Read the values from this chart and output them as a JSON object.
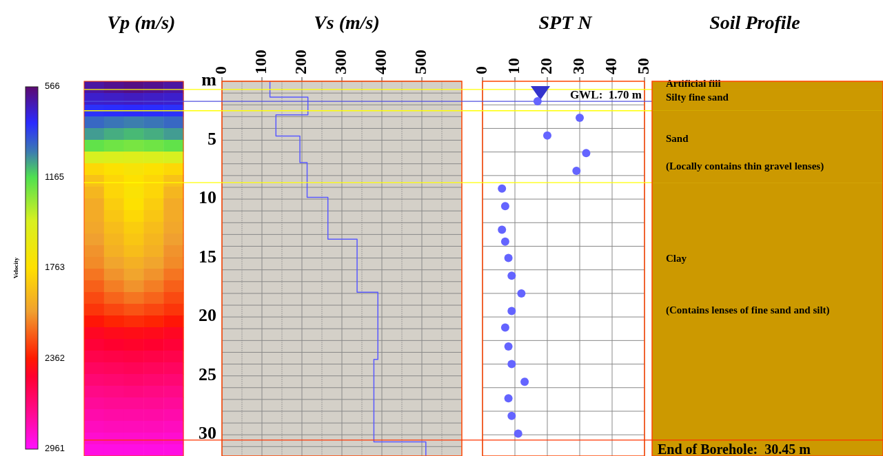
{
  "chart_data": [
    {
      "type": "heatmap",
      "title": "Vp (m/s)",
      "clabel": "Velocity",
      "clim": [
        566,
        2961
      ],
      "cticks": [
        566,
        1165,
        1763,
        2362,
        2961
      ],
      "categories": [
        null,
        null,
        null,
        null,
        null
      ],
      "y_categories": [
        null,
        null,
        null,
        null,
        null,
        null,
        null,
        null,
        null,
        null,
        null,
        null,
        null,
        null,
        null,
        null,
        null,
        null,
        null,
        null,
        null,
        null,
        null,
        null,
        null,
        null,
        null,
        null,
        null,
        null,
        null,
        null
      ],
      "cells": [
        [
          650,
          620,
          600,
          620,
          650
        ],
        [
          720,
          710,
          700,
          710,
          720
        ],
        [
          820,
          810,
          800,
          810,
          820
        ],
        [
          950,
          980,
          1000,
          980,
          950
        ],
        [
          1050,
          1080,
          1100,
          1080,
          1050
        ],
        [
          1200,
          1230,
          1250,
          1230,
          1200
        ],
        [
          1450,
          1480,
          1500,
          1480,
          1450
        ],
        [
          1800,
          1740,
          1700,
          1740,
          1800
        ],
        [
          1900,
          1810,
          1750,
          1810,
          1900
        ],
        [
          1950,
          1810,
          1720,
          1810,
          1950
        ],
        [
          2000,
          1850,
          1750,
          1850,
          2000
        ],
        [
          2000,
          1880,
          1800,
          1880,
          2000
        ],
        [
          2020,
          1920,
          1850,
          1920,
          2020
        ],
        [
          2050,
          1950,
          1880,
          1950,
          2050
        ],
        [
          2080,
          1980,
          1920,
          1980,
          2080
        ],
        [
          2100,
          2030,
          1980,
          2030,
          2100
        ],
        [
          2150,
          2080,
          2030,
          2080,
          2150
        ],
        [
          2200,
          2130,
          2080,
          2130,
          2200
        ],
        [
          2250,
          2190,
          2150,
          2190,
          2250
        ],
        [
          2300,
          2260,
          2230,
          2260,
          2300
        ],
        [
          2380,
          2340,
          2320,
          2340,
          2380
        ],
        [
          2450,
          2430,
          2420,
          2430,
          2450
        ],
        [
          2500,
          2480,
          2470,
          2480,
          2500
        ],
        [
          2550,
          2540,
          2530,
          2540,
          2550
        ],
        [
          2600,
          2590,
          2580,
          2590,
          2600
        ],
        [
          2650,
          2640,
          2630,
          2640,
          2650
        ],
        [
          2700,
          2690,
          2680,
          2690,
          2700
        ],
        [
          2740,
          2730,
          2730,
          2730,
          2740
        ],
        [
          2780,
          2770,
          2770,
          2770,
          2780
        ],
        [
          2820,
          2810,
          2810,
          2810,
          2820
        ],
        [
          2860,
          2850,
          2850,
          2850,
          2860
        ],
        [
          2900,
          2900,
          2900,
          2900,
          2900
        ]
      ]
    },
    {
      "type": "line",
      "title": "Vs (m/s)",
      "color": "#5a5aff",
      "x": [
        120,
        120,
        215,
        215,
        135,
        135,
        195,
        195,
        213,
        213,
        265,
        265,
        338,
        338,
        390,
        390,
        380,
        380,
        510,
        510
      ],
      "values": [
        0,
        1.35,
        1.35,
        2.85,
        2.85,
        4.65,
        4.65,
        6.9,
        6.9,
        9.85,
        9.85,
        13.4,
        13.4,
        17.9,
        17.9,
        23.6,
        23.6,
        30.6,
        30.6,
        31.8
      ],
      "xlim": [
        0,
        600
      ],
      "ylim": [
        31.8,
        0
      ],
      "xticks": [
        0,
        {
          "value": 50,
          "label": null
        },
        100,
        {
          "value": 150,
          "label": null
        },
        200,
        {
          "value": 250,
          "label": null
        },
        300,
        {
          "value": 350,
          "label": null
        },
        400,
        {
          "value": 450,
          "label": null
        },
        500,
        {
          "value": 550,
          "label": null
        }
      ],
      "yticks": [
        {
          "value": 0,
          "label": "m"
        },
        {
          "value": 1,
          "label": null
        },
        {
          "value": 2,
          "label": null
        },
        {
          "value": 3,
          "label": null
        },
        {
          "value": 4,
          "label": null
        },
        5,
        {
          "value": 6,
          "label": null
        },
        {
          "value": 7,
          "label": null
        },
        {
          "value": 8,
          "label": null
        },
        {
          "value": 9,
          "label": null
        },
        10,
        {
          "value": 11,
          "label": null
        },
        {
          "value": 12,
          "label": null
        },
        {
          "value": 13,
          "label": null
        },
        {
          "value": 14,
          "label": null
        },
        15,
        {
          "value": 16,
          "label": null
        },
        {
          "value": 17,
          "label": null
        },
        {
          "value": 18,
          "label": null
        },
        {
          "value": 19,
          "label": null
        },
        20,
        {
          "value": 21,
          "label": null
        },
        {
          "value": 22,
          "label": null
        },
        {
          "value": 23,
          "label": null
        },
        {
          "value": 24,
          "label": null
        },
        25,
        {
          "value": 26,
          "label": null
        },
        {
          "value": 27,
          "label": null
        },
        {
          "value": 28,
          "label": null
        },
        {
          "value": 29,
          "label": null
        },
        30,
        {
          "value": 31,
          "label": null
        }
      ],
      "grid": true
    },
    {
      "type": "scatter",
      "title": "SPT N",
      "color": "#6464ff",
      "marker": "circle",
      "x": [
        17,
        30,
        20,
        32,
        29,
        6,
        7,
        6,
        7,
        8,
        9,
        12,
        9,
        7,
        8,
        9,
        13,
        8,
        9,
        11
      ],
      "values": [
        1.7,
        3.1,
        4.6,
        6.1,
        7.6,
        9.1,
        10.6,
        12.6,
        13.6,
        15,
        16.5,
        18,
        19.5,
        20.9,
        22.5,
        24,
        25.5,
        26.9,
        28.4,
        29.9
      ],
      "xlim": [
        0,
        50
      ],
      "ylim": [
        31.8,
        0
      ],
      "xticks": [
        0,
        10,
        20,
        30,
        40,
        50
      ],
      "yticks": [
        {
          "value": 2,
          "label": null
        },
        {
          "value": 4,
          "label": null
        },
        {
          "value": 6,
          "label": null
        },
        {
          "value": 8,
          "label": null
        },
        {
          "value": 10,
          "label": null
        },
        {
          "value": 12,
          "label": null
        },
        {
          "value": 14,
          "label": null
        },
        {
          "value": 16,
          "label": null
        },
        {
          "value": 18,
          "label": null
        },
        {
          "value": 20,
          "label": null
        },
        {
          "value": 22,
          "label": null
        },
        {
          "value": 24,
          "label": null
        },
        {
          "value": 26,
          "label": null
        },
        {
          "value": 28,
          "label": null
        },
        {
          "value": 30,
          "label": null
        }
      ],
      "grid": true,
      "tick_labels": "x",
      "ref_lines": [
        {
          "axis": "y",
          "value": 0.7,
          "color": "#ffff00"
        },
        {
          "axis": "y",
          "value": 1.7,
          "label": "GWL:  1.70 m",
          "color": "#5050e0"
        },
        {
          "axis": "y",
          "value": 2.5,
          "color": "#ffff00"
        },
        {
          "axis": "y",
          "value": 8.6,
          "color": "#ffff00"
        }
      ]
    },
    {
      "type": "bar",
      "title": "Soil Profile",
      "stacked": true,
      "categories": [
        null
      ],
      "ylim": [
        31.8,
        0
      ],
      "tick_labels": false,
      "series": [
        {
          "name": "Artificial fill",
          "color": "#cc9900",
          "values": [
            0.7
          ]
        },
        {
          "name": "Silty fine sand",
          "color": "#cc9900",
          "values": [
            1.8
          ]
        },
        {
          "name": "Sand",
          "color": "#cc9900",
          "values": [
            6.1
          ]
        },
        {
          "name": "Clay",
          "color": "#cc9900",
          "values": [
            23.2
          ]
        }
      ],
      "annotations": [
        "(Locally contains thin gravel lenses)",
        "(Contains lenses of fine sand and silt)"
      ],
      "ref_lines": [
        {
          "axis": "y",
          "value": 30.45,
          "label": "End of Borehole:  30.45 m",
          "color": "#ff3300"
        }
      ]
    }
  ]
}
